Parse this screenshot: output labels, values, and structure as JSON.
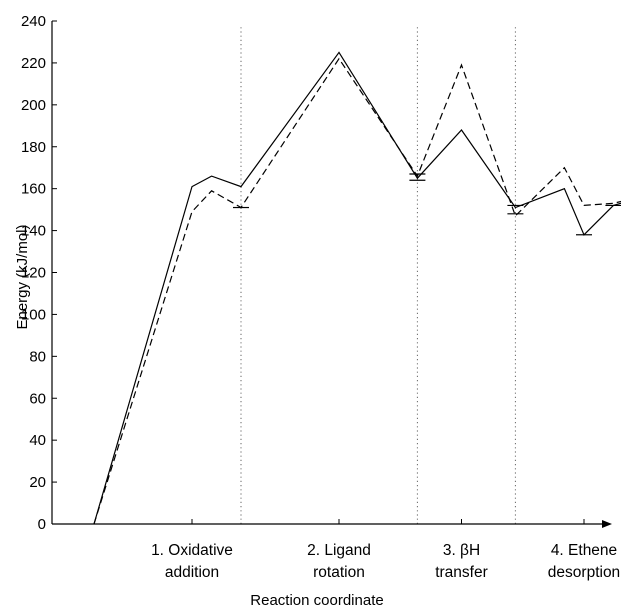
{
  "chart_data": {
    "type": "line",
    "title": "",
    "xlabel": "Reaction coordinate",
    "ylabel": "Energy (kJ/mol)",
    "ylim": [
      0,
      240
    ],
    "yticks": [
      0,
      20,
      40,
      60,
      80,
      100,
      120,
      140,
      160,
      180,
      200,
      220,
      240
    ],
    "categories": [
      {
        "lines": [
          "1. Oxidative",
          "addition"
        ],
        "x": 2
      },
      {
        "lines": [
          "2. Ligand",
          "rotation"
        ],
        "x": 5
      },
      {
        "lines": [
          "3. βH",
          "transfer"
        ],
        "x": 7.5
      },
      {
        "lines": [
          "4. Ethene",
          "desorption"
        ],
        "x": 10
      }
    ],
    "xticks": [
      2,
      5,
      7.5,
      10
    ],
    "dividers": [
      3,
      6.6,
      8.6
    ],
    "grid": false,
    "legend": "none",
    "series": [
      {
        "style": "solid",
        "points": [
          [
            0,
            0
          ],
          [
            2,
            161
          ],
          [
            2.4,
            166
          ],
          [
            3,
            161
          ],
          [
            5,
            225
          ],
          [
            6.6,
            165
          ],
          [
            7.5,
            188
          ],
          [
            8.6,
            151
          ],
          [
            9.6,
            160
          ],
          [
            10,
            138
          ],
          [
            10.6,
            152
          ],
          [
            11.5,
            158
          ]
        ]
      },
      {
        "style": "dashed",
        "points": [
          [
            0,
            0
          ],
          [
            2,
            149
          ],
          [
            2.4,
            159
          ],
          [
            3,
            151
          ],
          [
            5,
            222
          ],
          [
            6.6,
            166
          ],
          [
            7.5,
            219
          ],
          [
            8.6,
            147
          ],
          [
            9.6,
            170
          ],
          [
            10,
            152
          ],
          [
            10.6,
            153
          ],
          [
            11.5,
            158
          ]
        ]
      }
    ],
    "error_bars": [
      {
        "x": 3,
        "y": 151
      },
      {
        "x": 6.6,
        "y": 164
      },
      {
        "x": 6.6,
        "y": 167
      },
      {
        "x": 8.6,
        "y": 148
      },
      {
        "x": 8.6,
        "y": 152
      },
      {
        "x": 10,
        "y": 138
      },
      {
        "x": 10.6,
        "y": 152
      },
      {
        "x": 11.5,
        "y": 158
      }
    ]
  }
}
